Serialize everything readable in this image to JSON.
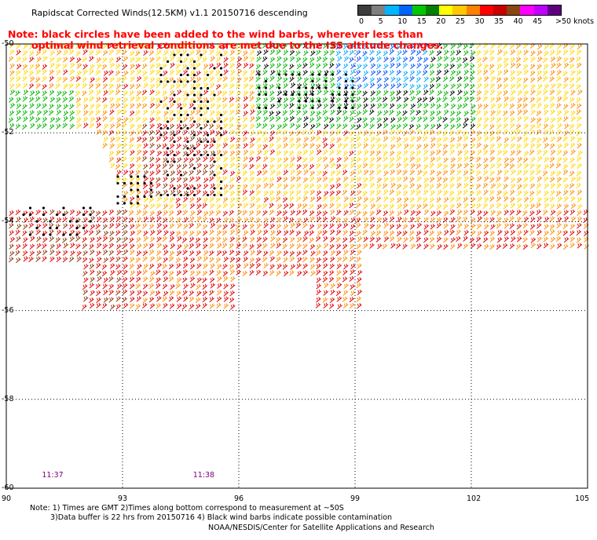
{
  "title": "Rapidscat Corrected Winds(12.5KM) v1.1 20150716 descending",
  "note": {
    "line1": "Note: black circles have been added to the wind barbs, wherever less than",
    "line2": "optimal wind retrieval conditions are met due to the ISS altitude changes."
  },
  "legend": {
    "unit": ">50 knots",
    "ticks": [
      "0",
      "5",
      "10",
      "15",
      "20",
      "25",
      "30",
      "35",
      "40",
      "45"
    ],
    "colors": [
      "#3c3c3c",
      "#7f7f7f",
      "#00b4ff",
      "#0064ff",
      "#00c800",
      "#008000",
      "#ffff00",
      "#ffc800",
      "#ff7f00",
      "#ff0000",
      "#c80000",
      "#8b4513",
      "#ff00ff",
      "#c000ff",
      "#600080"
    ]
  },
  "axes": {
    "latitudes": [
      "-50",
      "-52",
      "-54",
      "-56",
      "-58",
      "-60"
    ],
    "longitudes": [
      "90",
      "93",
      "96",
      "99",
      "102",
      "105"
    ]
  },
  "times": [
    "11:37",
    "11:38"
  ],
  "footer": {
    "line1": "Note: 1) Times are GMT 2)Times along bottom correspond to measurement at ~50S",
    "line2": "3)Data buffer is 22 hrs from 20150716 4) Black wind barbs indicate possible contamination",
    "credit": "NOAA/NESDIS/Center for Satellite Applications and Research"
  }
}
